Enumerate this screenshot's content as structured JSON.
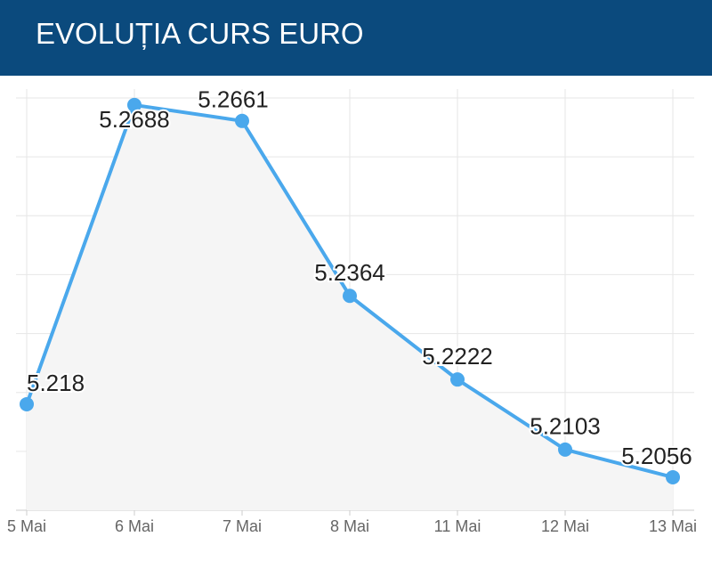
{
  "chart_data": {
    "type": "line",
    "title": "EVOLUȚIA CURS EURO",
    "categories": [
      "5 Mai",
      "6 Mai",
      "7 Mai",
      "8 Mai",
      "11 Mai",
      "12 Mai",
      "13 Mai"
    ],
    "values": [
      5.218,
      5.2688,
      5.2661,
      5.2364,
      5.2222,
      5.2103,
      5.2056
    ],
    "color": "#4aa8ec",
    "ylim": [
      5.2,
      5.27
    ],
    "yticks": [
      5.2,
      5.21,
      5.22,
      5.23,
      5.24,
      5.25,
      5.26,
      5.27
    ],
    "grid": true
  }
}
